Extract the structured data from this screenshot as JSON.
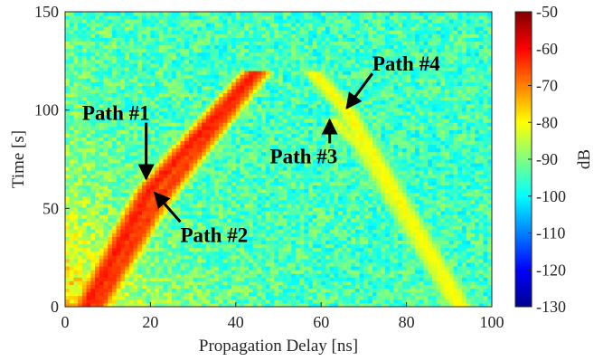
{
  "chart_data": {
    "type": "heatmap",
    "xlabel": "Propagation Delay [ns]",
    "ylabel": "Time [s]",
    "colorbar_label": "dB",
    "xlim": [
      0,
      100
    ],
    "ylim": [
      0,
      150
    ],
    "clim": [
      -130,
      -50
    ],
    "xticks": [
      0,
      20,
      40,
      60,
      80,
      100
    ],
    "yticks": [
      0,
      50,
      100,
      150
    ],
    "colorbar_ticks": [
      -50,
      -60,
      -70,
      -80,
      -90,
      -100,
      -110,
      -120,
      -130
    ],
    "x_tick_labels": [
      "0",
      "20",
      "40",
      "60",
      "80",
      "100"
    ],
    "y_tick_labels": [
      "0",
      "50",
      "100",
      "150"
    ],
    "colorbar_tick_labels": [
      "-50",
      "-60",
      "-70",
      "-80",
      "-90",
      "-100",
      "-110",
      "-120",
      "-130"
    ],
    "colormap": "jet",
    "noise_floor_db": -95,
    "paths": [
      {
        "delay_ns": [
          5,
          20,
          45
        ],
        "time_s": [
          0,
          60,
          120
        ],
        "peak_db": -62
      },
      {
        "delay_ns": [
          7,
          22,
          45
        ],
        "time_s": [
          0,
          55,
          120
        ],
        "peak_db": -64
      },
      {
        "delay_ns": [
          63,
          70,
          92
        ],
        "time_s": [
          95,
          80,
          0
        ],
        "peak_db": -82
      },
      {
        "delay_ns": [
          58,
          66,
          93
        ],
        "time_s": [
          120,
          100,
          0
        ],
        "peak_db": -80
      }
    ],
    "annotations": [
      {
        "text": "Path #1",
        "x": 4,
        "y": 95,
        "arrow_to": [
          19,
          65
        ]
      },
      {
        "text": "Path #2",
        "x": 27,
        "y": 33,
        "arrow_to": [
          21,
          58
        ]
      },
      {
        "text": "Path #3",
        "x": 48,
        "y": 73,
        "arrow_to": [
          62,
          95
        ]
      },
      {
        "text": "Path #4",
        "x": 72,
        "y": 120,
        "arrow_to": [
          66,
          101
        ]
      }
    ]
  }
}
